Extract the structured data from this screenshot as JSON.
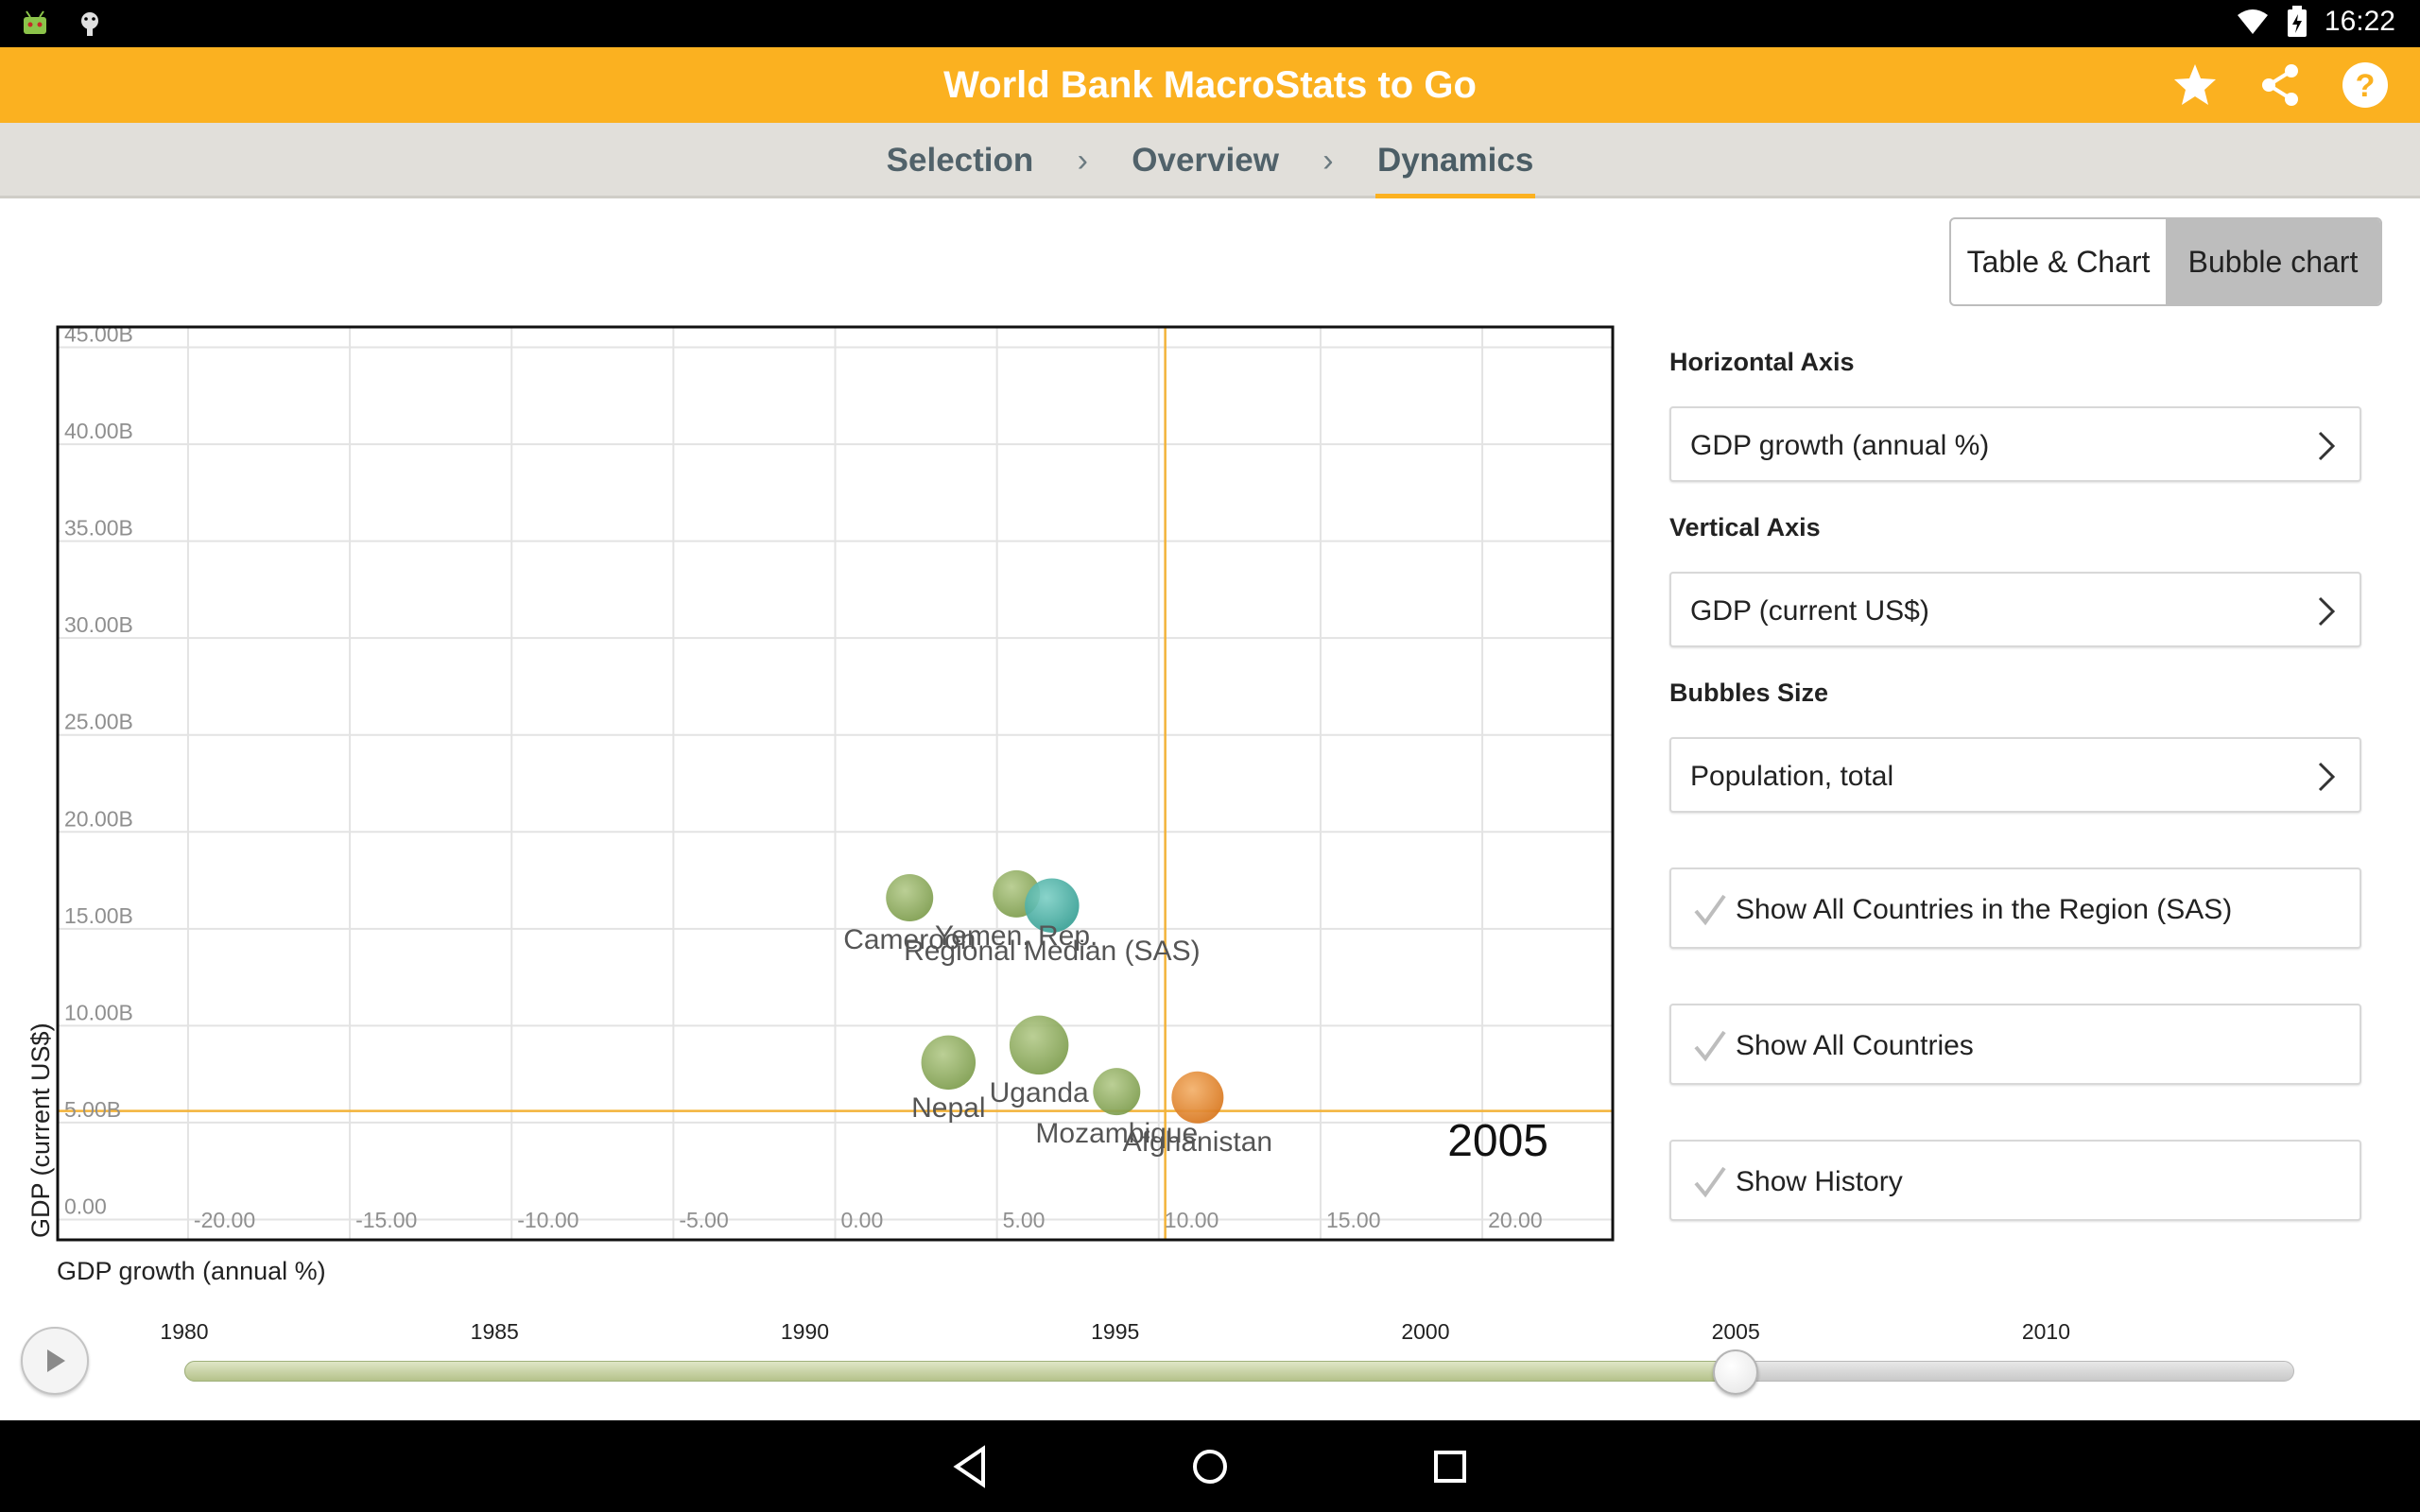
{
  "status_bar": {
    "time": "16:22"
  },
  "app": {
    "title": "World Bank MacroStats to Go"
  },
  "actions": [
    {
      "name": "star-icon"
    },
    {
      "name": "share-icon"
    },
    {
      "name": "help-icon"
    }
  ],
  "tabs": [
    {
      "label": "Selection",
      "active": false
    },
    {
      "label": "Overview",
      "active": false
    },
    {
      "label": "Dynamics",
      "active": true
    }
  ],
  "view_toggle": {
    "options": [
      "Table & Chart",
      "Bubble chart"
    ],
    "selected": "Bubble chart"
  },
  "panel": {
    "horizontal_axis_label": "Horizontal Axis",
    "horizontal_axis_value": "GDP growth (annual %)",
    "vertical_axis_label": "Vertical Axis",
    "vertical_axis_value": "GDP (current US$)",
    "bubble_size_label": "Bubbles Size",
    "bubble_size_value": "Population, total",
    "checks": [
      "Show All Countries in the Region (SAS)",
      "Show All Countries",
      "Show History"
    ]
  },
  "timeline": {
    "years": [
      "1980",
      "1985",
      "1990",
      "1995",
      "2000",
      "2005",
      "2010"
    ],
    "start_year": 1980,
    "end_year": 2014,
    "current_year": 2005
  },
  "chart_data": {
    "type": "scatter",
    "subtype": "bubble",
    "xlabel": "GDP growth (annual %)",
    "ylabel": "GDP (current US$)",
    "xlim": [
      -24,
      24
    ],
    "ylim": [
      -1,
      46
    ],
    "x_ticks": [
      "-20.00",
      "-15.00",
      "-10.00",
      "-5.00",
      "0.00",
      "5.00",
      "10.00",
      "15.00",
      "20.00"
    ],
    "x_tick_values": [
      -20,
      -15,
      -10,
      -5,
      0,
      5,
      10,
      15,
      20
    ],
    "y_ticks": [
      "0.00",
      "5.00B",
      "10.00B",
      "15.00B",
      "20.00B",
      "25.00B",
      "30.00B",
      "35.00B",
      "40.00B",
      "45.00B"
    ],
    "y_tick_values": [
      0,
      5,
      10,
      15,
      20,
      25,
      30,
      35,
      40,
      45
    ],
    "year_label": "2005",
    "grid": true,
    "reference_lines": {
      "x": 10.2,
      "y": 5.6
    },
    "points": [
      {
        "name": "Cameroon",
        "x": 2.3,
        "y": 16.6,
        "size": 1.0,
        "color": "#8aab5a"
      },
      {
        "name": "Yemen, Rep.",
        "x": 5.6,
        "y": 16.8,
        "size": 1.0,
        "color": "#8aab5a"
      },
      {
        "name": "Regional Median (SAS)",
        "x": 6.7,
        "y": 16.2,
        "size": 1.15,
        "color": "#4ab3a8"
      },
      {
        "name": "Nepal",
        "x": 3.5,
        "y": 8.1,
        "size": 1.15,
        "color": "#8aab5a"
      },
      {
        "name": "Uganda",
        "x": 6.3,
        "y": 9.0,
        "size": 1.25,
        "color": "#8aab5a"
      },
      {
        "name": "Mozambique",
        "x": 8.7,
        "y": 6.6,
        "size": 1.0,
        "color": "#8aab5a"
      },
      {
        "name": "Afghanistan",
        "x": 11.2,
        "y": 6.3,
        "size": 1.1,
        "color": "#e48a2c"
      }
    ]
  }
}
